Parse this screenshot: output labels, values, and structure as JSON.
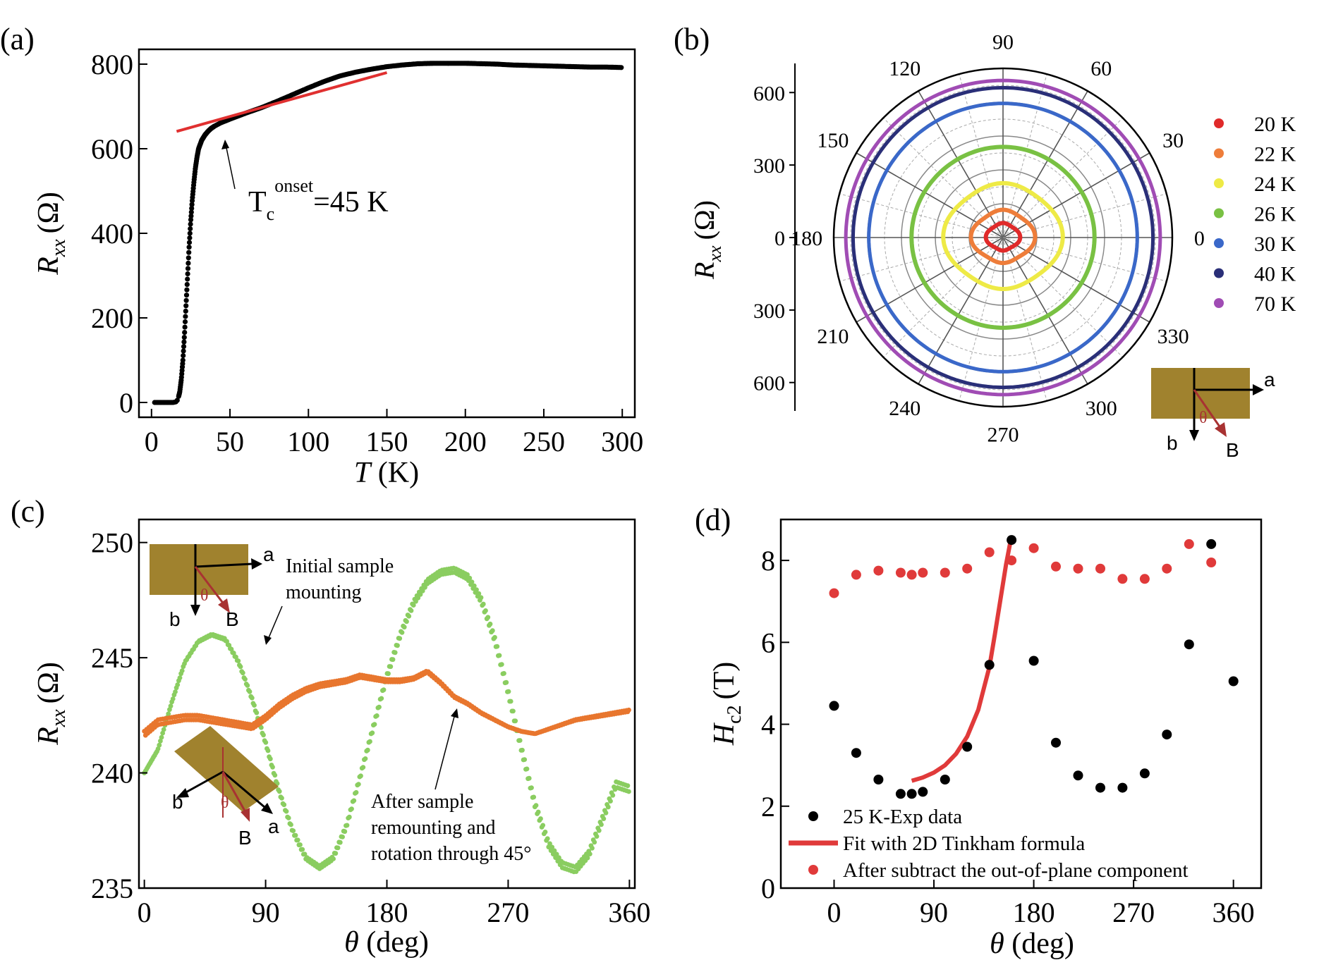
{
  "panels": [
    {
      "label": "(a)"
    },
    {
      "label": "(b)"
    },
    {
      "label": "(c)"
    },
    {
      "label": "(d)"
    }
  ],
  "chart_data": [
    {
      "id": "a",
      "type": "scatter",
      "xlabel_symbol": "T",
      "xlabel_unit": "(K)",
      "ylabel_symbol": "R",
      "ylabel_sub": "xx",
      "ylabel_unit": "(Ω)",
      "xlim": [
        -8,
        308
      ],
      "ylim": [
        -35,
        835
      ],
      "xticks": [
        0,
        50,
        100,
        150,
        200,
        250,
        300
      ],
      "yticks": [
        0,
        200,
        400,
        600,
        800
      ],
      "series": [
        {
          "name": "Rxx(T)",
          "color": "#000000",
          "x": [
            2,
            4,
            6,
            8,
            10,
            12,
            14,
            16,
            17,
            18,
            19,
            20,
            21,
            22,
            23,
            24,
            25,
            26,
            27,
            28,
            29,
            30,
            32,
            34,
            36,
            38,
            40,
            42,
            44,
            46,
            48,
            50,
            55,
            60,
            70,
            80,
            90,
            100,
            110,
            120,
            130,
            140,
            150,
            160,
            170,
            180,
            190,
            200,
            210,
            220,
            230,
            240,
            250,
            260,
            270,
            280,
            290,
            300
          ],
          "y": [
            0,
            0,
            0,
            0,
            0,
            0,
            0,
            2,
            10,
            25,
            55,
            100,
            160,
            230,
            300,
            370,
            430,
            480,
            520,
            555,
            580,
            600,
            620,
            632,
            641,
            648,
            653,
            657,
            661,
            664,
            667,
            670,
            677,
            684,
            697,
            712,
            728,
            744,
            759,
            772,
            781,
            788,
            794,
            798,
            801,
            802,
            802,
            802,
            801,
            800,
            798,
            797,
            796,
            795,
            794,
            793,
            793,
            792
          ]
        },
        {
          "name": "linear-fit",
          "color": "#e03030",
          "x": [
            16,
            150
          ],
          "y": [
            641,
            780
          ]
        }
      ],
      "annotations": [
        {
          "base": "T",
          "sub": "c",
          "sup": "onset",
          "tail": "=45 K"
        }
      ]
    },
    {
      "id": "b",
      "type": "polar",
      "ylabel_symbol": "R",
      "ylabel_sub": "xx",
      "ylabel_unit": "(Ω)",
      "rlim": [
        0,
        700
      ],
      "r_ticks_text": [
        "600",
        "300",
        "0",
        "300",
        "600"
      ],
      "angle_labels": [
        "0",
        "30",
        "60",
        "90",
        "120",
        "150",
        "180",
        "210",
        "240",
        "270",
        "300",
        "330"
      ],
      "legend": [
        {
          "label": "20 K",
          "color": "#e02a2a"
        },
        {
          "label": "22 K",
          "color": "#ee7d3a"
        },
        {
          "label": "24 K",
          "color": "#eeea46"
        },
        {
          "label": "26 K",
          "color": "#79c143"
        },
        {
          "label": "30 K",
          "color": "#3a68c9"
        },
        {
          "label": "40 K",
          "color": "#2a2f78"
        },
        {
          "label": "70 K",
          "color": "#a04cb4"
        }
      ],
      "series": [
        {
          "name": "20 K",
          "r0": 60,
          "amp": 20,
          "color": "#e02a2a"
        },
        {
          "name": "22 K",
          "r0": 115,
          "amp": 32,
          "color": "#ee7d3a"
        },
        {
          "name": "24 K",
          "r0": 225,
          "amp": 40,
          "color": "#eeea46"
        },
        {
          "name": "26 K",
          "r0": 375,
          "amp": 6,
          "color": "#79c143"
        },
        {
          "name": "30 K",
          "r0": 555,
          "amp": 0,
          "color": "#3a68c9"
        },
        {
          "name": "40 K",
          "r0": 620,
          "amp": 0,
          "color": "#2a2f78"
        },
        {
          "name": "70 K",
          "r0": 650,
          "amp": 0,
          "color": "#a04cb4"
        }
      ],
      "inset": {
        "a": "a",
        "b": "b",
        "B": "B",
        "theta": "θ"
      }
    },
    {
      "id": "c",
      "type": "scatter",
      "xlabel_symbol": "θ",
      "xlabel_unit": "(deg)",
      "ylabel_symbol": "R",
      "ylabel_sub": "xx",
      "ylabel_unit": "(Ω)",
      "xlim": [
        -4,
        364
      ],
      "ylim": [
        235,
        251
      ],
      "xticks": [
        0,
        90,
        180,
        270,
        360
      ],
      "yticks": [
        235,
        240,
        245,
        250
      ],
      "series": [
        {
          "name": "initial-mounting",
          "color": "#8acd60",
          "x": [
            0,
            10,
            20,
            30,
            40,
            50,
            60,
            70,
            80,
            90,
            100,
            110,
            120,
            130,
            140,
            150,
            160,
            170,
            180,
            190,
            200,
            210,
            220,
            230,
            240,
            250,
            260,
            270,
            280,
            290,
            300,
            310,
            320,
            330,
            340,
            350,
            360
          ],
          "y": [
            240.0,
            241.0,
            243.0,
            244.8,
            245.7,
            246.0,
            245.8,
            244.8,
            243.2,
            241.3,
            239.2,
            237.5,
            236.3,
            235.9,
            236.3,
            237.7,
            239.8,
            242.0,
            244.2,
            246.0,
            247.4,
            248.3,
            248.7,
            248.8,
            248.5,
            247.5,
            245.8,
            243.5,
            241.0,
            238.6,
            236.9,
            236.0,
            235.8,
            236.5,
            238.0,
            239.5,
            239.3
          ]
        },
        {
          "name": "after-remounting",
          "color": "#e8762e",
          "x": [
            0,
            10,
            20,
            30,
            40,
            50,
            60,
            70,
            80,
            90,
            100,
            110,
            120,
            130,
            140,
            150,
            160,
            170,
            180,
            190,
            200,
            210,
            220,
            230,
            240,
            250,
            260,
            270,
            280,
            290,
            300,
            310,
            320,
            330,
            340,
            350,
            360
          ],
          "y": [
            241.7,
            242.2,
            242.3,
            242.4,
            242.4,
            242.3,
            242.2,
            242.1,
            242.0,
            242.4,
            242.9,
            243.3,
            243.6,
            243.8,
            243.9,
            244.0,
            244.2,
            244.1,
            244.0,
            244.0,
            244.1,
            244.4,
            243.9,
            243.3,
            243.0,
            242.6,
            242.3,
            242.0,
            241.8,
            241.7,
            241.9,
            242.1,
            242.3,
            242.4,
            242.5,
            242.6,
            242.7
          ]
        }
      ],
      "annotations": [
        {
          "lines": [
            "Initial sample",
            "mounting"
          ]
        },
        {
          "lines": [
            "After sample",
            "remounting and",
            "rotation through 45°"
          ]
        }
      ],
      "insets": [
        {
          "a": "a",
          "b": "b",
          "B": "B",
          "theta": "θ"
        },
        {
          "a": "a",
          "b": "b",
          "B": "B",
          "theta": "θ"
        }
      ]
    },
    {
      "id": "d",
      "type": "scatter",
      "xlabel_symbol": "θ",
      "xlabel_unit": "(deg)",
      "ylabel_symbol": "H",
      "ylabel_sub": "c2",
      "ylabel_unit": "(T)",
      "xlim": [
        -48,
        385
      ],
      "ylim": [
        0,
        9.0
      ],
      "xticks": [
        0,
        90,
        180,
        270,
        360
      ],
      "yticks": [
        0,
        2,
        4,
        6,
        8
      ],
      "series": [
        {
          "name": "25 K-Exp data",
          "color": "#000000",
          "x": [
            0,
            20,
            40,
            60,
            70,
            80,
            100,
            120,
            140,
            160,
            180,
            200,
            220,
            240,
            260,
            280,
            300,
            320,
            340,
            360
          ],
          "y": [
            4.45,
            3.3,
            2.65,
            2.3,
            2.3,
            2.35,
            2.65,
            3.45,
            5.45,
            8.5,
            5.55,
            3.55,
            2.75,
            2.45,
            2.45,
            2.8,
            3.75,
            5.95,
            8.4,
            5.05
          ]
        },
        {
          "name": "Fit with 2D Tinkham formula",
          "color": "#e03a3a",
          "x": [
            70,
            80,
            90,
            100,
            110,
            120,
            130,
            140,
            145,
            150,
            155,
            160
          ],
          "y": [
            2.62,
            2.7,
            2.82,
            3.0,
            3.28,
            3.7,
            4.35,
            5.4,
            6.2,
            7.05,
            7.9,
            8.6
          ]
        },
        {
          "name": "After subtract the out-of-plane component",
          "color": "#e03a3a",
          "x": [
            0,
            20,
            40,
            60,
            70,
            80,
            100,
            120,
            140,
            160,
            180,
            200,
            220,
            240,
            260,
            280,
            300,
            320,
            340
          ],
          "y": [
            7.2,
            7.65,
            7.75,
            7.7,
            7.65,
            7.7,
            7.7,
            7.8,
            8.2,
            8.0,
            8.3,
            7.85,
            7.8,
            7.8,
            7.55,
            7.55,
            7.8,
            8.4,
            7.95
          ]
        }
      ],
      "legend": [
        "25 K-Exp data",
        "Fit with 2D Tinkham formula",
        "After subtract the out-of-plane component"
      ]
    }
  ]
}
